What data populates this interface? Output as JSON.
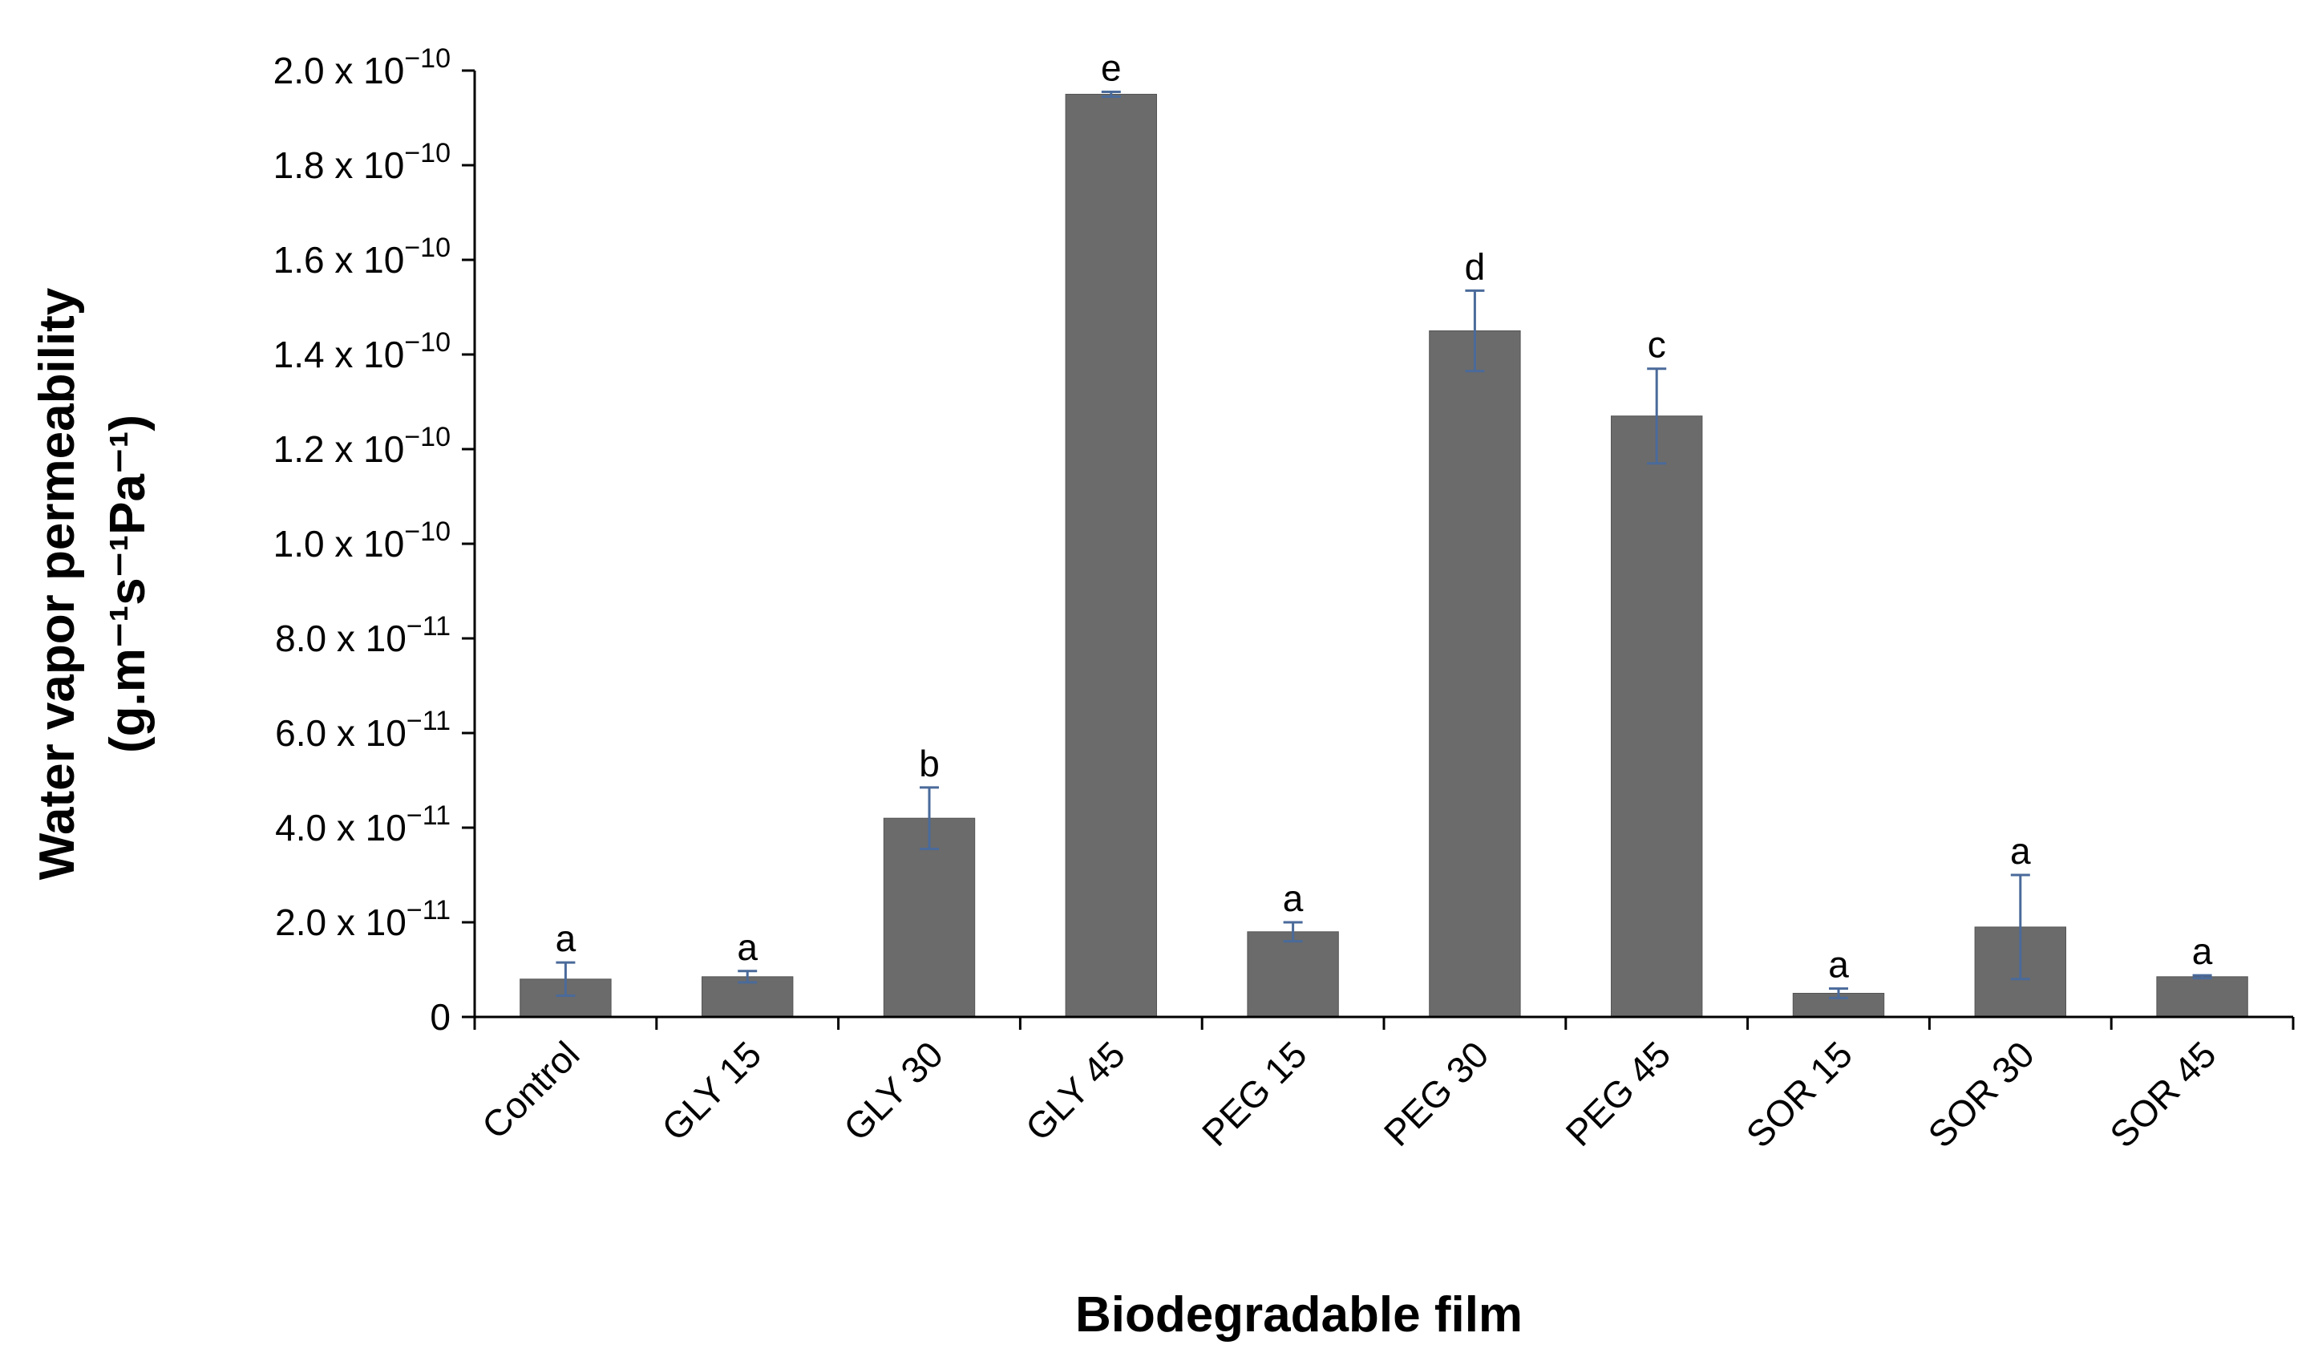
{
  "chart_data": {
    "type": "bar",
    "title": "",
    "xlabel": "Biodegradable film",
    "ylabel_line1": "Water vapor permeability",
    "ylabel_line2": "(g.m⁻¹s⁻¹Pa⁻¹)",
    "ylim": [
      0,
      2e-10
    ],
    "categories": [
      "Control",
      "GLY 15",
      "GLY 30",
      "GLY 45",
      "PEG 15",
      "PEG 30",
      "PEG 45",
      "SOR 15",
      "SOR 30",
      "SOR 45"
    ],
    "values": [
      8e-12,
      8.5e-12,
      4.2e-11,
      1.95e-10,
      1.8e-11,
      1.45e-10,
      1.27e-10,
      5e-12,
      1.9e-11,
      8.5e-12
    ],
    "errors": [
      3.5e-12,
      1.2e-12,
      6.5e-12,
      5e-13,
      2e-12,
      8.5e-12,
      1e-11,
      1e-12,
      1.1e-11,
      3e-13
    ],
    "significance": [
      "a",
      "a",
      "b",
      "e",
      "a",
      "d",
      "c",
      "a",
      "a",
      "a"
    ],
    "yticks": [
      {
        "value": 0,
        "mantissa": "0",
        "exp": ""
      },
      {
        "value": 2e-11,
        "mantissa": "2.0 x 10",
        "exp": "−11"
      },
      {
        "value": 4e-11,
        "mantissa": "4.0 x 10",
        "exp": "−11"
      },
      {
        "value": 6e-11,
        "mantissa": "6.0 x 10",
        "exp": "−11"
      },
      {
        "value": 8e-11,
        "mantissa": "8.0 x 10",
        "exp": "−11"
      },
      {
        "value": 1e-10,
        "mantissa": "1.0 x 10",
        "exp": "−10"
      },
      {
        "value": 1.2e-10,
        "mantissa": "1.2 x 10",
        "exp": "−10"
      },
      {
        "value": 1.4e-10,
        "mantissa": "1.4 x 10",
        "exp": "−10"
      },
      {
        "value": 1.6e-10,
        "mantissa": "1.6 x 10",
        "exp": "−10"
      },
      {
        "value": 1.8e-10,
        "mantissa": "1.8 x 10",
        "exp": "−10"
      },
      {
        "value": 2e-10,
        "mantissa": "2.0 x 10",
        "exp": "−10"
      }
    ],
    "grid": false,
    "legend": "none",
    "colors": {
      "bar": "#6b6b6b",
      "bar_edge": "#555555",
      "error_bar": "#4a6a9a",
      "axis": "#000000"
    }
  }
}
